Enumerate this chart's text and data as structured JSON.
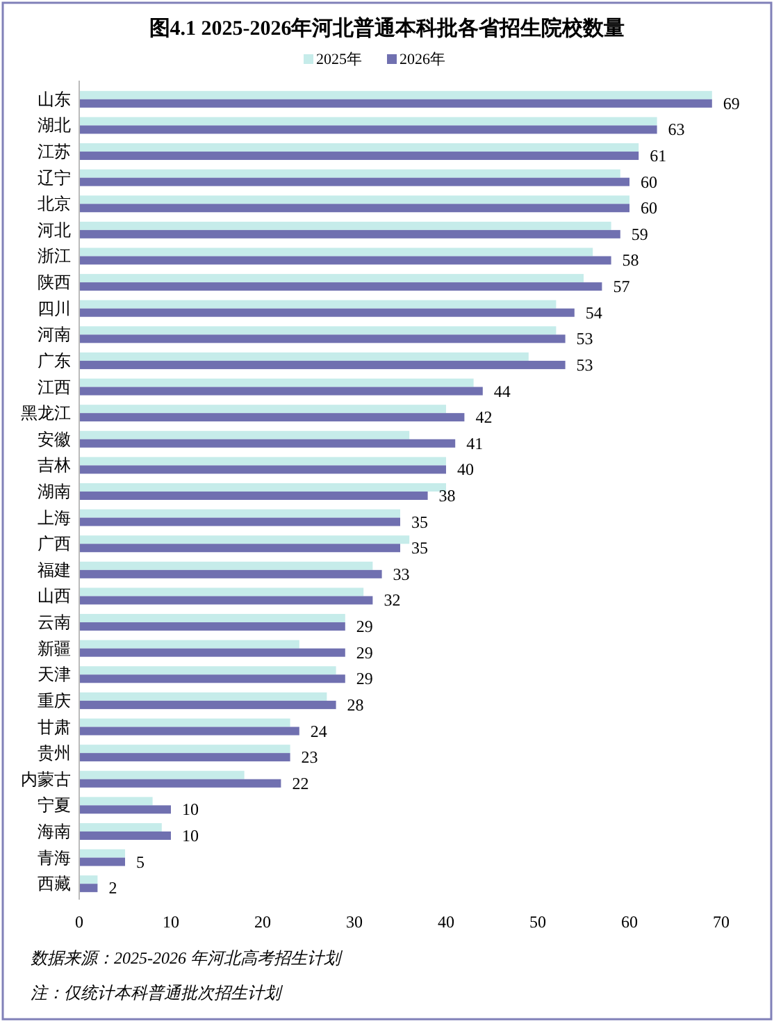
{
  "chart_data": {
    "type": "bar",
    "orientation": "horizontal",
    "title": "图4.1  2025-2026年河北普通本科批各省招生院校数量",
    "categories": [
      "山东",
      "湖北",
      "江苏",
      "辽宁",
      "北京",
      "河北",
      "浙江",
      "陕西",
      "四川",
      "河南",
      "广东",
      "江西",
      "黑龙江",
      "安徽",
      "吉林",
      "湖南",
      "上海",
      "广西",
      "福建",
      "山西",
      "云南",
      "新疆",
      "天津",
      "重庆",
      "甘肃",
      "贵州",
      "内蒙古",
      "宁夏",
      "海南",
      "青海",
      "西藏"
    ],
    "series": [
      {
        "name": "2025年",
        "color": "#c6ecea",
        "values": [
          69,
          63,
          61,
          59,
          60,
          58,
          56,
          55,
          52,
          52,
          49,
          43,
          40,
          36,
          40,
          40,
          35,
          36,
          32,
          31,
          29,
          24,
          28,
          27,
          23,
          23,
          18,
          8,
          9,
          5,
          2
        ]
      },
      {
        "name": "2026年",
        "color": "#7070b0",
        "values": [
          69,
          63,
          61,
          60,
          60,
          59,
          58,
          57,
          54,
          53,
          53,
          44,
          42,
          41,
          40,
          38,
          35,
          35,
          33,
          32,
          29,
          29,
          29,
          28,
          24,
          23,
          22,
          10,
          10,
          5,
          2
        ],
        "value_labels": [
          "69",
          "63",
          "61",
          "60",
          "60",
          "59",
          "58",
          "57",
          "54",
          "53",
          "53",
          "44",
          "42",
          "41",
          "40",
          "38",
          "35",
          "35",
          "33",
          "32",
          "29",
          "29",
          "29",
          "28",
          "24",
          "23",
          "22",
          "10",
          "10",
          "5",
          "2"
        ]
      }
    ],
    "xlim": [
      0,
      70
    ],
    "xticks": [
      0,
      10,
      20,
      30,
      40,
      50,
      60,
      70
    ],
    "grid": false,
    "legend": "top",
    "annotations": [
      "数据来源：2025-2026 年河北高考招生计划",
      "注：仅统计本科普通批次招生计划"
    ]
  }
}
